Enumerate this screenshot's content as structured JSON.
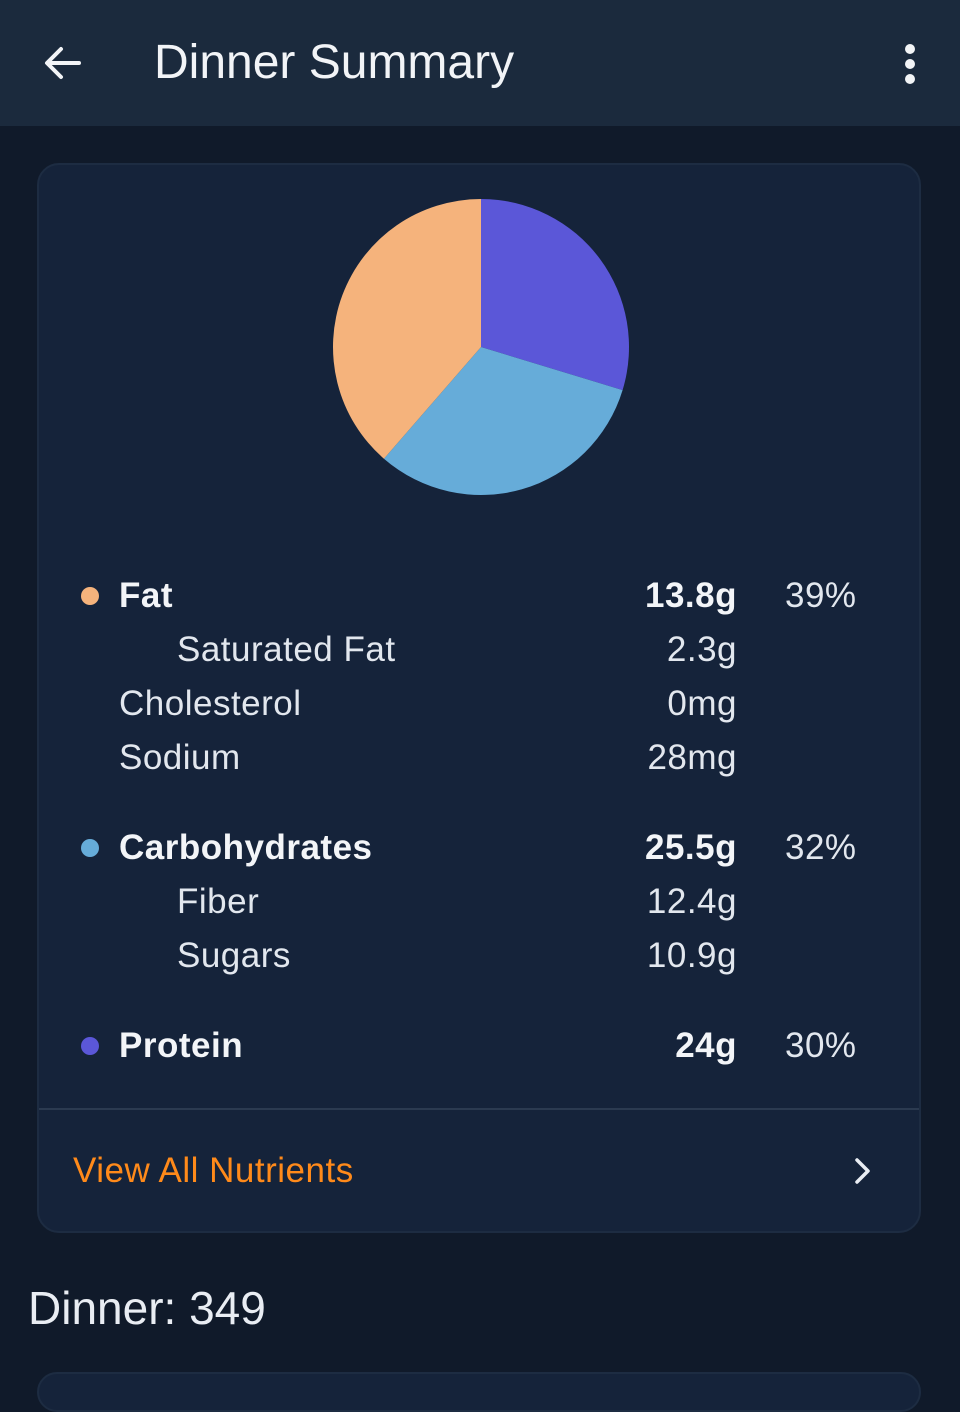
{
  "header": {
    "title": "Dinner Summary",
    "back_icon": "arrow-left-icon",
    "more_icon": "more-vertical-icon"
  },
  "chart_data": {
    "type": "pie",
    "title": "",
    "series": [
      {
        "name": "Fat",
        "value": 39,
        "color": "#f5b37c"
      },
      {
        "name": "Carbohydrates",
        "value": 32,
        "color": "#66acd9"
      },
      {
        "name": "Protein",
        "value": 30,
        "color": "#5b57d8"
      }
    ],
    "order_clockwise_from_top": [
      "Protein",
      "Carbohydrates",
      "Fat"
    ]
  },
  "nutrients": {
    "fat": {
      "label": "Fat",
      "amount": "13.8g",
      "pct": "39%",
      "color": "#f5b37c"
    },
    "saturated_fat": {
      "label": "Saturated Fat",
      "amount": "2.3g"
    },
    "cholesterol": {
      "label": "Cholesterol",
      "amount": "0mg"
    },
    "sodium": {
      "label": "Sodium",
      "amount": "28mg"
    },
    "carbs": {
      "label": "Carbohydrates",
      "amount": "25.5g",
      "pct": "32%",
      "color": "#66acd9"
    },
    "fiber": {
      "label": "Fiber",
      "amount": "12.4g"
    },
    "sugars": {
      "label": "Sugars",
      "amount": "10.9g"
    },
    "protein": {
      "label": "Protein",
      "amount": "24g",
      "pct": "30%",
      "color": "#5b57d8"
    }
  },
  "view_all": {
    "label": "View All Nutrients",
    "icon": "chevron-right-icon",
    "color": "#ff8a1a"
  },
  "dinner_total": "Dinner: 349"
}
